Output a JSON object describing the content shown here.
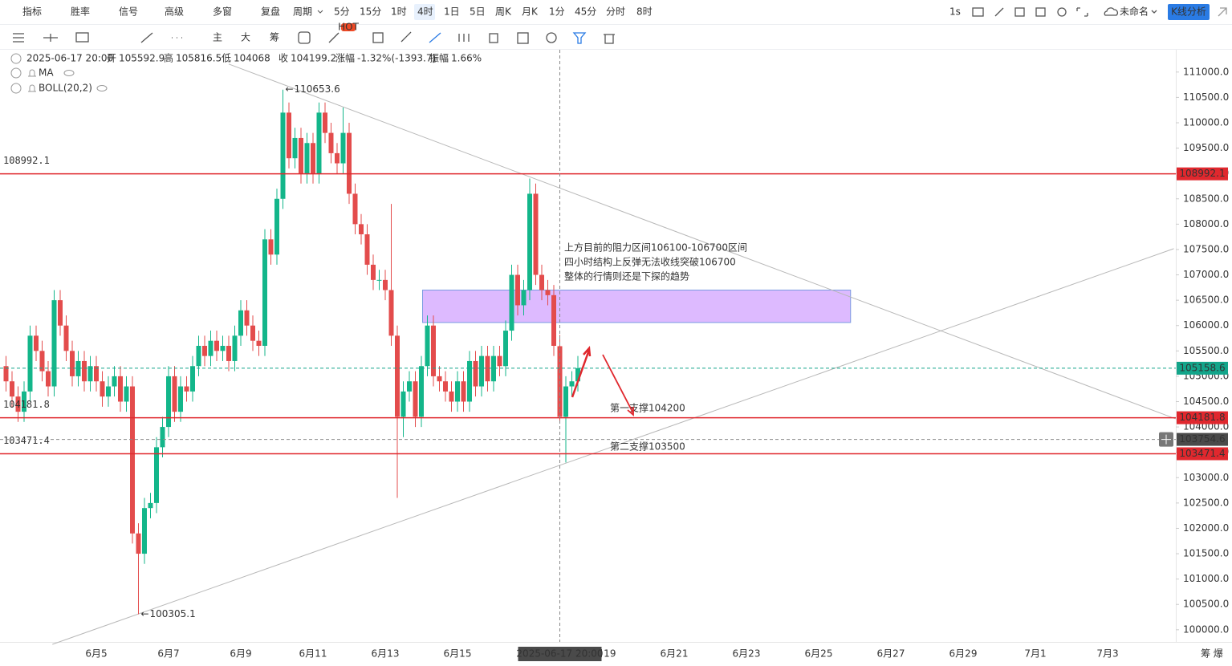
{
  "toolbar": {
    "top_items": [
      "指标",
      "胜率",
      "信号",
      "高级",
      "多窗",
      "复盘",
      "周期"
    ],
    "periods": [
      "5分",
      "15分",
      "1时",
      "4时",
      "1日",
      "5日",
      "周K",
      "月K",
      "1分",
      "45分",
      "分时",
      "8时"
    ],
    "active_period_index": 3,
    "right_items": [
      "1s",
      "未命名",
      "K线分析"
    ],
    "drawing_items": [
      "主",
      "大",
      "筹"
    ],
    "hot_badge": "HOT"
  },
  "header": {
    "open_label": "开",
    "high_label": "高",
    "low_label": "低",
    "close_label": "收",
    "change_label": "涨幅",
    "change": "-1.32%(-1393.7)",
    "amplitude_label": "振幅",
    "amplitude": "1.66%",
    "indicators": [
      "MA",
      "BOLL(20,2)"
    ]
  },
  "chart_data": {
    "type": "candlestick",
    "up_color": "#13b68a",
    "down_color": "#e34c4c",
    "open": [
      105200,
      104900,
      104600,
      104300,
      104700,
      105800,
      105500,
      105100,
      104800,
      106500,
      106000,
      105500,
      105000,
      105300,
      104900,
      105200,
      104900,
      104600,
      104800,
      105000,
      104500,
      104800,
      101900,
      101500,
      102400,
      102500,
      103600,
      104000,
      105000,
      104300,
      104800,
      104700,
      105200,
      105600,
      105400,
      105700,
      105500,
      105600,
      105300,
      105800,
      106300,
      106000,
      105700,
      105600,
      107700,
      107400,
      108500,
      110200,
      109300,
      109700,
      109000,
      109600,
      109000,
      110200,
      109800,
      109400,
      109200,
      109800,
      108600,
      108000,
      107800,
      107200,
      106900,
      106900,
      106700,
      105800,
      104200,
      104700,
      104900,
      104200,
      105200,
      106000,
      105000,
      104900,
      104700,
      104500,
      104900,
      104500,
      105300,
      104800,
      105400,
      104900,
      105400,
      105200,
      105900,
      107000,
      106400,
      106700,
      108600,
      107000,
      106700,
      106600,
      105592.9,
      104199.2,
      104800,
      104900
    ],
    "high": [
      105400,
      105100,
      104800,
      104900,
      106000,
      106000,
      105700,
      105300,
      106700,
      106700,
      106200,
      105700,
      105500,
      105500,
      105400,
      105400,
      105100,
      105000,
      105200,
      105200,
      105000,
      105000,
      102100,
      102600,
      102700,
      103800,
      104200,
      105200,
      105200,
      105000,
      105000,
      105400,
      105800,
      105800,
      105900,
      105900,
      105800,
      105800,
      106000,
      106500,
      106500,
      106200,
      105900,
      107900,
      107900,
      108700,
      110653.6,
      110400,
      109900,
      109900,
      109800,
      109800,
      110400,
      110400,
      110000,
      109600,
      110300,
      110000,
      108800,
      108200,
      108000,
      107400,
      107100,
      107100,
      108400,
      106000,
      104900,
      105100,
      105100,
      105400,
      106200,
      106200,
      105200,
      105100,
      104900,
      105100,
      105100,
      105500,
      105500,
      105600,
      105600,
      105600,
      105600,
      106100,
      107200,
      107200,
      106900,
      108900,
      108800,
      107200,
      106900,
      106800,
      105816.5,
      105000,
      105100,
      105400
    ],
    "low": [
      104700,
      104400,
      104100,
      104100,
      104500,
      105300,
      104900,
      104600,
      104600,
      105800,
      105300,
      104800,
      104800,
      104700,
      104700,
      104700,
      104400,
      104400,
      104600,
      104300,
      104300,
      101700,
      100305.1,
      101300,
      102200,
      102300,
      103400,
      103800,
      104100,
      104100,
      104500,
      104500,
      105000,
      105200,
      105200,
      105300,
      105300,
      105100,
      105100,
      105600,
      105800,
      105500,
      105400,
      105400,
      107200,
      107200,
      108300,
      109100,
      109100,
      108800,
      108800,
      108800,
      108800,
      109600,
      109200,
      109000,
      109000,
      108400,
      107800,
      107600,
      107000,
      106700,
      106700,
      106500,
      105600,
      102600,
      103800,
      104500,
      104000,
      104000,
      105000,
      104800,
      104700,
      104500,
      104300,
      104300,
      104300,
      104300,
      104600,
      104600,
      104700,
      104700,
      105000,
      105000,
      105700,
      106200,
      106200,
      106500,
      106800,
      106500,
      106400,
      105400,
      104068.0,
      103300,
      104600,
      104700
    ],
    "close": [
      104900,
      104600,
      104300,
      104700,
      105800,
      105500,
      105100,
      104800,
      106500,
      106000,
      105500,
      105000,
      105300,
      104900,
      105200,
      104900,
      104600,
      104800,
      105000,
      104500,
      104800,
      101900,
      101500,
      102400,
      102500,
      103600,
      104000,
      105000,
      104300,
      104800,
      104700,
      105200,
      105600,
      105400,
      105700,
      105500,
      105600,
      105300,
      105800,
      106300,
      106000,
      105700,
      105600,
      107700,
      107400,
      108500,
      110200,
      109300,
      109700,
      109000,
      109600,
      109000,
      110200,
      109800,
      109400,
      109200,
      109800,
      108600,
      108000,
      107800,
      107200,
      106900,
      106900,
      106700,
      105800,
      104200,
      104700,
      104900,
      104200,
      105200,
      106000,
      105000,
      104900,
      104700,
      104500,
      104900,
      104500,
      105300,
      104800,
      105400,
      104900,
      105400,
      105200,
      105900,
      107000,
      106400,
      106700,
      108600,
      107000,
      106700,
      106600,
      105600,
      104199.2,
      104800,
      104900,
      105158.6
    ],
    "ylim": [
      99760,
      111440
    ],
    "yticks": [
      {
        "value": 100000,
        "label": "100000.0"
      },
      {
        "value": 100500,
        "label": "100500.0"
      },
      {
        "value": 101000,
        "label": "101000.0"
      },
      {
        "value": 101500,
        "label": "101500.0"
      },
      {
        "value": 102000,
        "label": "102000.0"
      },
      {
        "value": 102500,
        "label": "102500.0"
      },
      {
        "value": 103000,
        "label": "103000.0"
      },
      {
        "value": 103500,
        "label": "103500.0"
      },
      {
        "value": 104000,
        "label": "104000.0"
      },
      {
        "value": 104500,
        "label": "104500.0"
      },
      {
        "value": 105000,
        "label": "105000.0"
      },
      {
        "value": 105500,
        "label": "105500.0"
      },
      {
        "value": 106000,
        "label": "106000.0"
      },
      {
        "value": 106500,
        "label": "106500.0"
      },
      {
        "value": 107000,
        "label": "107000.0"
      },
      {
        "value": 107500,
        "label": "107500.0"
      },
      {
        "value": 108000,
        "label": "108000.0"
      },
      {
        "value": 108500,
        "label": "108500.0"
      },
      {
        "value": 109000,
        "label": "109000.0"
      },
      {
        "value": 109500,
        "label": "109500.0"
      },
      {
        "value": 110000,
        "label": "110000.0"
      },
      {
        "value": 110500,
        "label": "110500.0"
      },
      {
        "value": 111000,
        "label": "111000.0"
      }
    ],
    "x_labels": [
      "6月5",
      "6月7",
      "6月9",
      "6月11",
      "6月13",
      "6月15",
      null,
      "6月19",
      "6月21",
      "6月23",
      "6月25",
      "6月27",
      "6月29",
      "7月1",
      "7月3"
    ],
    "levels": [
      {
        "value": 108992.1,
        "color": "#e0282e",
        "dashed": false,
        "left_label": true
      },
      {
        "value": 104181.8,
        "color": "#e0282e",
        "dashed": false,
        "left_label": true
      },
      {
        "value": 103471.4,
        "color": "#e0282e",
        "dashed": false,
        "left_label": true
      },
      {
        "value": 105158.6,
        "color": "#13a58a",
        "dashed": true,
        "left_label": false
      }
    ],
    "crosshair": {
      "time": "2025-06-17 20:00",
      "price": 103754.6,
      "index": 92
    },
    "zone": {
      "top": 106700,
      "bottom": 106060,
      "start": 69.2,
      "end": 140.3,
      "color": "#d9b3ff"
    },
    "trend_lines": [
      {
        "x": [
          37,
          194.3
        ],
        "y": [
          111158,
          104161
        ]
      },
      {
        "x": [
          7.7,
          194
        ],
        "y": [
          99713,
          107517
        ]
      }
    ],
    "annotations": [
      "上方目前的阻力区间106100-106700区间",
      "四小时结构上反弹无法收线突破106700",
      "整体的行情则还是下探的趋势"
    ],
    "support_labels": [
      "第一支撑104200",
      "第二支撑103500"
    ],
    "corner_text": "筹 爆"
  }
}
